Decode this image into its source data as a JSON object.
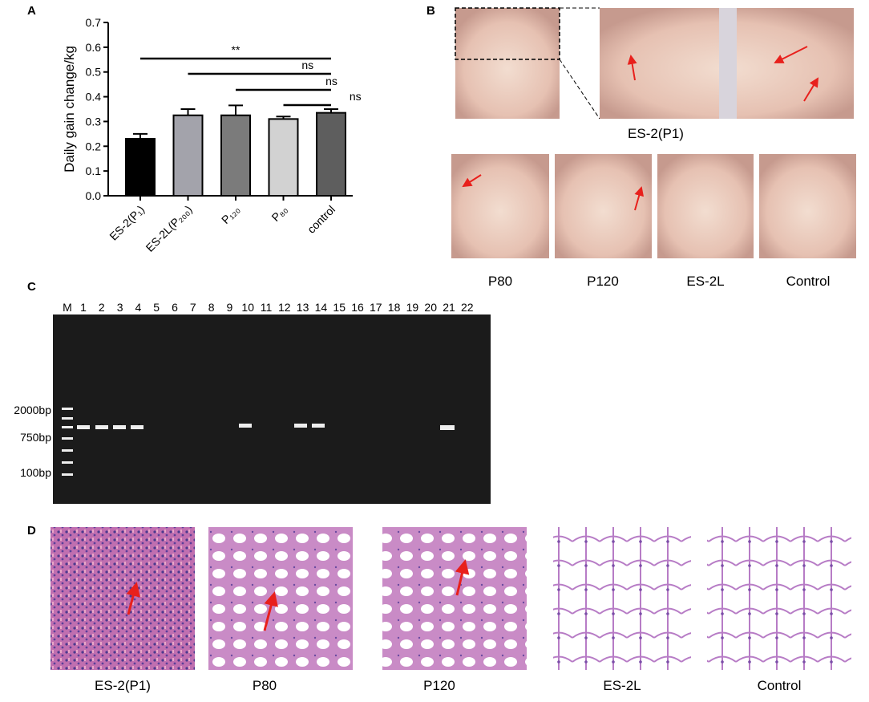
{
  "panel_labels": [
    "A",
    "B",
    "C",
    "D"
  ],
  "chart_data": {
    "type": "bar",
    "y_label": "Daily gain change/kg",
    "categories": [
      "ES-2(P₁)",
      "ES-2L(P₂₀₀)",
      "P₁₂₀",
      "P₈₀",
      "control"
    ],
    "values": [
      0.23,
      0.325,
      0.325,
      0.31,
      0.335
    ],
    "errors": [
      0.02,
      0.025,
      0.04,
      0.01,
      0.015
    ],
    "colors": [
      "#000000",
      "#a3a3ab",
      "#7b7b7b",
      "#d2d2d2",
      "#5e5e5e"
    ],
    "ylim": [
      0,
      0.7
    ],
    "yticks": [
      {
        "value": 0,
        "label": "0.0"
      },
      0.1,
      0.2,
      0.3,
      0.4,
      0.5,
      0.6,
      0.7
    ],
    "significance": [
      "**",
      "ns",
      "ns",
      "ns"
    ]
  },
  "panel_b": {
    "zoom_label": "ES-2(P1)",
    "labels": [
      "P80",
      "P120",
      "ES-2L",
      "Control"
    ]
  },
  "panel_c": {
    "lanes": [
      "M",
      "1",
      "2",
      "3",
      "4",
      "5",
      "6",
      "7",
      "8",
      "9",
      "10",
      "11",
      "12",
      "13",
      "14",
      "15",
      "16",
      "17",
      "18",
      "19",
      "20",
      "21",
      "22"
    ],
    "ladder": [
      "2000bp",
      "750bp",
      "100bp"
    ]
  },
  "panel_d": {
    "labels": [
      "ES-2(P1)",
      "P80",
      "P120",
      "ES-2L",
      "Control"
    ]
  }
}
